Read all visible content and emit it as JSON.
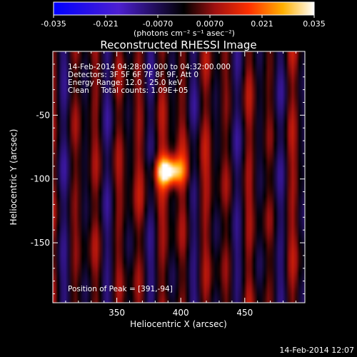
{
  "colorbar": {
    "ticks": [
      "-0.035",
      "-0.021",
      "-0.0070",
      "0.0070",
      "0.021",
      "0.035"
    ],
    "range": [
      -0.035,
      0.035
    ],
    "units_label": "(photons cm⁻² s⁻¹ asec⁻²)"
  },
  "chart_data": {
    "type": "heatmap",
    "title": "Reconstructed RHESSI Image",
    "xlabel": "Heliocentric X (arcsec)",
    "ylabel": "Heliocentric Y (arcsec)",
    "xlim": [
      300,
      497
    ],
    "ylim": [
      -197,
      0
    ],
    "x_ticks": [
      350,
      400,
      450
    ],
    "y_ticks": [
      -50,
      -100,
      -150
    ],
    "annotations": [
      "14-Feb-2014 04:28:00.000 to 04:32:00.000",
      "Detectors: 3F 5F 6F 7F 8F 9F, Att 0",
      "Energy Range: 12.0 - 25.0 keV",
      "Clean     Total counts: 1.09E+05"
    ],
    "peak_label": "Position of Peak = [391,-94]",
    "peak": {
      "x": 391,
      "y": -94,
      "value": 0.035
    },
    "colormap": "red-temperature",
    "value_range": [
      -0.035,
      0.035
    ]
  },
  "footer": {
    "date": "14-Feb-2014 12:07"
  }
}
